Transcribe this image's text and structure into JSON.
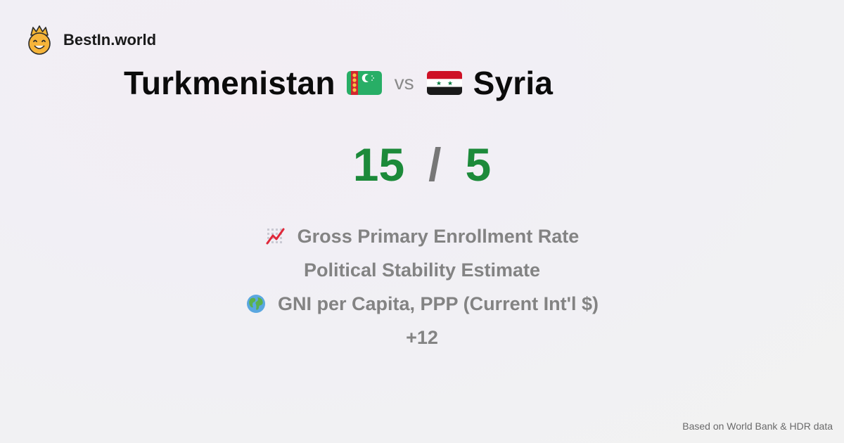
{
  "brand": {
    "name": "BestIn.world",
    "logo_icon": "crown-smiley-icon"
  },
  "comparison": {
    "country_a": {
      "name": "Turkmenistan",
      "flag_icon": "turkmenistan-flag-icon"
    },
    "vs_label": "vs",
    "country_b": {
      "name": "Syria",
      "flag_icon": "syria-flag-icon"
    }
  },
  "score": {
    "a": "15",
    "separator": "/",
    "b": "5",
    "color": "#1c8a3a"
  },
  "metrics": [
    {
      "label": "Gross Primary Enrollment Rate",
      "icon": "chart-increasing-icon"
    },
    {
      "label": "Political Stability Estimate",
      "icon": ""
    },
    {
      "label": "GNI per Capita, PPP (Current Int'l $)",
      "icon": "globe-icon"
    },
    {
      "label": "+12",
      "icon": ""
    }
  ],
  "footer": {
    "source": "Based on World Bank & HDR data"
  }
}
